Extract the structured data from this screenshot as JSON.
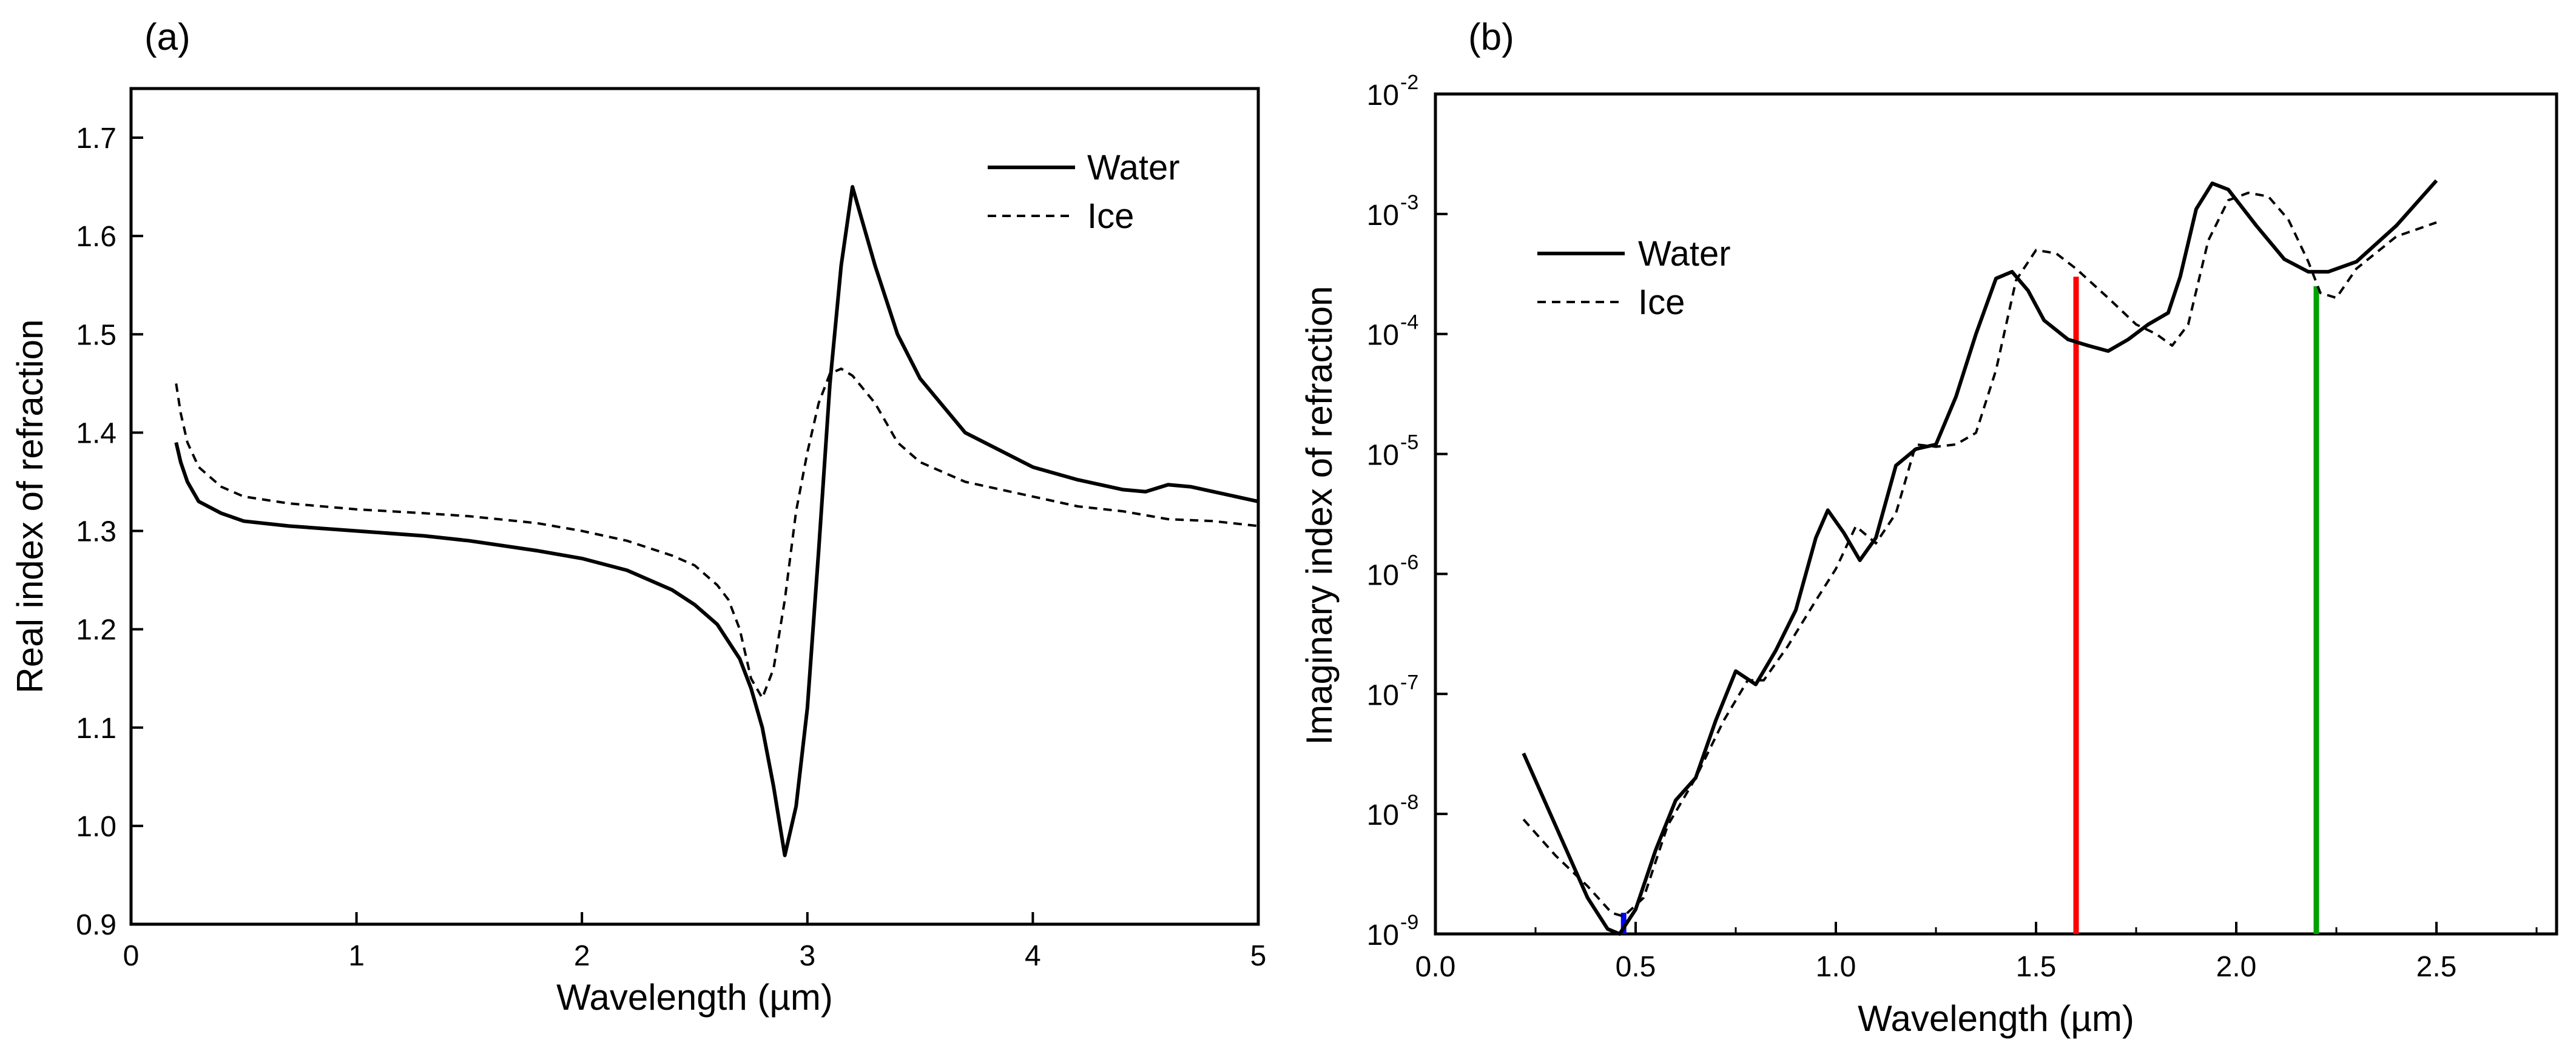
{
  "chart_data": [
    {
      "panel": "(a)",
      "type": "line",
      "xlabel": "Wavelength (µm)",
      "ylabel": "Real index of refraction",
      "xlim": [
        0,
        5
      ],
      "ylim": [
        0.9,
        1.75
      ],
      "xticks": [
        "0",
        "1",
        "2",
        "3",
        "4",
        "5"
      ],
      "yticks": [
        "0.9",
        "1.0",
        "1.1",
        "1.2",
        "1.3",
        "1.4",
        "1.5",
        "1.6",
        "1.7"
      ],
      "legend": {
        "placement": "top-right",
        "entries": [
          "Water",
          "Ice"
        ]
      },
      "grid": false,
      "series": [
        {
          "name": "Water",
          "style": "solid",
          "x": [
            0.2,
            0.22,
            0.25,
            0.3,
            0.4,
            0.5,
            0.7,
            1.0,
            1.3,
            1.5,
            1.8,
            2.0,
            2.2,
            2.4,
            2.5,
            2.6,
            2.7,
            2.75,
            2.8,
            2.85,
            2.9,
            2.95,
            3.0,
            3.05,
            3.1,
            3.15,
            3.2,
            3.3,
            3.4,
            3.5,
            3.7,
            4.0,
            4.2,
            4.4,
            4.5,
            4.6,
            4.7,
            4.8,
            5.0
          ],
          "y": [
            1.39,
            1.37,
            1.35,
            1.33,
            1.318,
            1.31,
            1.305,
            1.3,
            1.295,
            1.29,
            1.28,
            1.272,
            1.26,
            1.24,
            1.225,
            1.205,
            1.17,
            1.14,
            1.1,
            1.04,
            0.97,
            1.02,
            1.12,
            1.28,
            1.45,
            1.57,
            1.65,
            1.57,
            1.5,
            1.455,
            1.4,
            1.365,
            1.352,
            1.342,
            1.34,
            1.347,
            1.345,
            1.34,
            1.33
          ]
        },
        {
          "name": "Ice",
          "style": "dashed",
          "x": [
            0.2,
            0.22,
            0.25,
            0.3,
            0.4,
            0.5,
            0.7,
            1.0,
            1.3,
            1.5,
            1.8,
            2.0,
            2.2,
            2.4,
            2.5,
            2.6,
            2.65,
            2.7,
            2.75,
            2.8,
            2.85,
            2.9,
            2.95,
            3.0,
            3.05,
            3.1,
            3.15,
            3.2,
            3.3,
            3.4,
            3.5,
            3.7,
            4.0,
            4.2,
            4.4,
            4.6,
            4.8,
            5.0
          ],
          "y": [
            1.45,
            1.42,
            1.39,
            1.365,
            1.345,
            1.335,
            1.328,
            1.322,
            1.318,
            1.315,
            1.308,
            1.3,
            1.29,
            1.275,
            1.265,
            1.245,
            1.23,
            1.2,
            1.15,
            1.13,
            1.16,
            1.23,
            1.32,
            1.38,
            1.43,
            1.46,
            1.465,
            1.458,
            1.43,
            1.39,
            1.37,
            1.35,
            1.335,
            1.325,
            1.32,
            1.312,
            1.31,
            1.305
          ]
        }
      ]
    },
    {
      "panel": "(b)",
      "type": "line",
      "xlabel": "Wavelength (µm)",
      "ylabel": "Imaginary index of refraction",
      "yscale": "log",
      "xlim": [
        0,
        2.8
      ],
      "ylim": [
        1e-09,
        0.01
      ],
      "xticks": [
        "0.0",
        "0.5",
        "1.0",
        "1.5",
        "2.0",
        "2.5"
      ],
      "yticks": [
        {
          "base": "10",
          "exp": "-9"
        },
        {
          "base": "10",
          "exp": "-8"
        },
        {
          "base": "10",
          "exp": "-7"
        },
        {
          "base": "10",
          "exp": "-6"
        },
        {
          "base": "10",
          "exp": "-5"
        },
        {
          "base": "10",
          "exp": "-4"
        },
        {
          "base": "10",
          "exp": "-3"
        },
        {
          "base": "10",
          "exp": "-2"
        }
      ],
      "legend": {
        "placement": "upper-left",
        "entries": [
          "Water",
          "Ice"
        ]
      },
      "grid": false,
      "series": [
        {
          "name": "Water",
          "style": "solid",
          "x": [
            0.22,
            0.3,
            0.38,
            0.43,
            0.46,
            0.5,
            0.55,
            0.6,
            0.65,
            0.7,
            0.75,
            0.8,
            0.85,
            0.9,
            0.95,
            0.98,
            1.02,
            1.06,
            1.1,
            1.15,
            1.2,
            1.25,
            1.3,
            1.35,
            1.4,
            1.44,
            1.48,
            1.52,
            1.58,
            1.63,
            1.68,
            1.73,
            1.78,
            1.83,
            1.86,
            1.9,
            1.94,
            1.98,
            2.05,
            2.12,
            2.18,
            2.23,
            2.3,
            2.4,
            2.5
          ],
          "y": [
            3.2e-08,
            8e-09,
            2e-09,
            1.1e-09,
            1e-09,
            1.6e-09,
            5e-09,
            1.3e-08,
            2e-08,
            6e-08,
            1.55e-07,
            1.2e-07,
            2.3e-07,
            5e-07,
            2e-06,
            3.4e-06,
            2.2e-06,
            1.3e-06,
            2e-06,
            8e-06,
            1.1e-05,
            1.2e-05,
            3e-05,
            0.0001,
            0.00029,
            0.00033,
            0.00023,
            0.00013,
            9e-05,
            8e-05,
            7.2e-05,
            9e-05,
            0.00012,
            0.00015,
            0.0003,
            0.0011,
            0.0018,
            0.0016,
            0.0008,
            0.00042,
            0.00033,
            0.00033,
            0.0004,
            0.0008,
            0.0019
          ]
        },
        {
          "name": "Ice",
          "style": "dashed",
          "x": [
            0.22,
            0.3,
            0.38,
            0.44,
            0.47,
            0.52,
            0.58,
            0.65,
            0.72,
            0.78,
            0.82,
            0.88,
            0.95,
            1.0,
            1.05,
            1.1,
            1.15,
            1.2,
            1.25,
            1.3,
            1.35,
            1.4,
            1.45,
            1.5,
            1.55,
            1.6,
            1.68,
            1.75,
            1.8,
            1.84,
            1.88,
            1.93,
            1.98,
            2.03,
            2.08,
            2.13,
            2.18,
            2.21,
            2.25,
            2.3,
            2.4,
            2.5
          ],
          "y": [
            9e-09,
            4.5e-09,
            2.5e-09,
            1.5e-09,
            1.4e-09,
            2e-09,
            8e-09,
            2e-08,
            6e-08,
            1.3e-07,
            1.3e-07,
            2.5e-07,
            6e-07,
            1.1e-06,
            2.5e-06,
            1.8e-06,
            3.2e-06,
            1.2e-05,
            1.15e-05,
            1.2e-05,
            1.5e-05,
            5e-05,
            0.00028,
            0.0005,
            0.00047,
            0.00035,
            0.0002,
            0.00012,
            0.0001,
            8e-05,
            0.00012,
            0.0006,
            0.0013,
            0.0015,
            0.0014,
            0.0009,
            0.0004,
            0.00022,
            0.0002,
            0.00035,
            0.00065,
            0.00085
          ]
        }
      ],
      "markers": [
        {
          "color": "#0000ff",
          "x": 0.47,
          "y_from": 1e-09,
          "y_to": 1.5e-09
        },
        {
          "color": "#ff0000",
          "x": 1.6,
          "y_from": 1e-09,
          "y_to": 0.0003
        },
        {
          "color": "#00a000",
          "x": 2.2,
          "y_from": 1e-09,
          "y_to": 0.00025
        }
      ]
    }
  ]
}
